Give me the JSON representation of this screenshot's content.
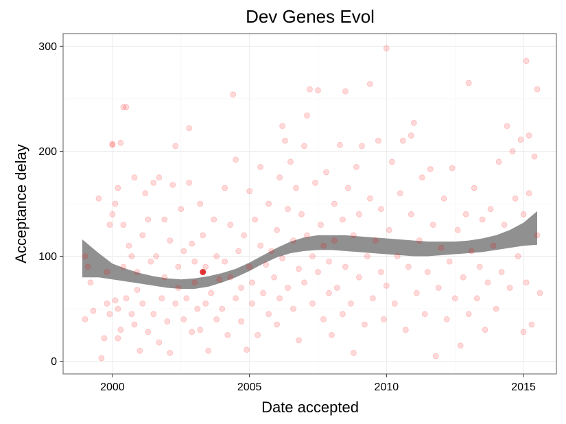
{
  "chart_data": {
    "type": "scatter",
    "title": "Dev Genes Evol",
    "xlabel": "Date accepted",
    "ylabel": "Acceptance delay",
    "xlim": [
      1998.2,
      2016.2
    ],
    "ylim": [
      -12,
      312
    ],
    "x_ticks": [
      2000,
      2005,
      2010,
      2015
    ],
    "y_ticks": [
      0,
      100,
      200,
      300
    ],
    "x_tick_labels": [
      "2000",
      "2005",
      "2010",
      "2015"
    ],
    "y_tick_labels": [
      "0",
      "100",
      "200",
      "300"
    ],
    "grid": true,
    "legend": "none",
    "point_color": "#ff0000",
    "point_alpha": 0.15,
    "highlight_point": {
      "x": 2003.3,
      "y": 85,
      "color": "#dd1111"
    },
    "smooth": {
      "x": [
        1998.9,
        1999.5,
        2000.0,
        2000.5,
        2001.0,
        2001.5,
        2002.0,
        2002.5,
        2003.0,
        2003.5,
        2004.0,
        2004.5,
        2005.0,
        2005.5,
        2006.0,
        2006.5,
        2007.0,
        2007.5,
        2008.0,
        2008.5,
        2009.0,
        2009.5,
        2010.0,
        2010.5,
        2011.0,
        2011.5,
        2012.0,
        2012.5,
        2013.0,
        2013.5,
        2014.0,
        2014.5,
        2015.0,
        2015.5
      ],
      "upper": [
        116,
        103,
        93,
        88,
        84,
        81,
        79,
        78,
        79,
        81,
        84,
        88,
        94,
        101,
        108,
        114,
        118,
        120,
        120,
        120,
        119,
        118,
        117,
        116,
        115,
        114,
        114,
        114,
        115,
        117,
        120,
        125,
        132,
        143
      ],
      "lower": [
        80,
        80,
        78,
        76,
        74,
        72,
        70,
        69,
        69,
        71,
        75,
        80,
        86,
        93,
        99,
        103,
        105,
        106,
        106,
        105,
        104,
        103,
        102,
        101,
        100,
        100,
        101,
        102,
        103,
        104,
        106,
        108,
        110,
        111
      ],
      "fill_color": "#909090"
    },
    "points": [
      [
        1999.0,
        40
      ],
      [
        1999.0,
        100
      ],
      [
        1999.1,
        90
      ],
      [
        1999.2,
        75
      ],
      [
        1999.3,
        48
      ],
      [
        1999.5,
        155
      ],
      [
        1999.6,
        3
      ],
      [
        1999.7,
        22
      ],
      [
        1999.8,
        55
      ],
      [
        1999.8,
        85
      ],
      [
        1999.9,
        130
      ],
      [
        1999.9,
        45
      ],
      [
        2000.0,
        140
      ],
      [
        2000.0,
        206
      ],
      [
        2000.0,
        207
      ],
      [
        2000.1,
        150
      ],
      [
        2000.1,
        58
      ],
      [
        2000.2,
        165
      ],
      [
        2000.2,
        22
      ],
      [
        2000.2,
        50
      ],
      [
        2000.3,
        208
      ],
      [
        2000.3,
        30
      ],
      [
        2000.4,
        90
      ],
      [
        2000.4,
        130
      ],
      [
        2000.4,
        242
      ],
      [
        2000.5,
        242
      ],
      [
        2000.5,
        60
      ],
      [
        2000.6,
        110
      ],
      [
        2000.7,
        100
      ],
      [
        2000.7,
        45
      ],
      [
        2000.8,
        175
      ],
      [
        2000.8,
        35
      ],
      [
        2000.9,
        85
      ],
      [
        2000.9,
        68
      ],
      [
        2001.0,
        10
      ],
      [
        2001.1,
        120
      ],
      [
        2001.1,
        55
      ],
      [
        2001.2,
        160
      ],
      [
        2001.3,
        28
      ],
      [
        2001.3,
        135
      ],
      [
        2001.4,
        95
      ],
      [
        2001.5,
        170
      ],
      [
        2001.5,
        45
      ],
      [
        2001.6,
        100
      ],
      [
        2001.7,
        175
      ],
      [
        2001.7,
        18
      ],
      [
        2001.8,
        60
      ],
      [
        2001.9,
        135
      ],
      [
        2001.9,
        80
      ],
      [
        2002.0,
        38
      ],
      [
        2002.1,
        115
      ],
      [
        2002.1,
        8
      ],
      [
        2002.2,
        168
      ],
      [
        2002.3,
        205
      ],
      [
        2002.3,
        55
      ],
      [
        2002.4,
        90
      ],
      [
        2002.4,
        70
      ],
      [
        2002.5,
        145
      ],
      [
        2002.6,
        40
      ],
      [
        2002.6,
        105
      ],
      [
        2002.7,
        60
      ],
      [
        2002.8,
        170
      ],
      [
        2002.8,
        222
      ],
      [
        2002.9,
        112
      ],
      [
        2002.9,
        28
      ],
      [
        2003.0,
        95
      ],
      [
        2003.0,
        75
      ],
      [
        2003.1,
        50
      ],
      [
        2003.2,
        150
      ],
      [
        2003.2,
        30
      ],
      [
        2003.3,
        120
      ],
      [
        2003.4,
        55
      ],
      [
        2003.4,
        90
      ],
      [
        2003.5,
        10
      ],
      [
        2003.6,
        65
      ],
      [
        2003.7,
        135
      ],
      [
        2003.8,
        40
      ],
      [
        2003.8,
        100
      ],
      [
        2003.9,
        78
      ],
      [
        2004.0,
        50
      ],
      [
        2004.1,
        165
      ],
      [
        2004.1,
        95
      ],
      [
        2004.2,
        25
      ],
      [
        2004.3,
        80
      ],
      [
        2004.3,
        130
      ],
      [
        2004.4,
        254
      ],
      [
        2004.5,
        60
      ],
      [
        2004.5,
        192
      ],
      [
        2004.6,
        105
      ],
      [
        2004.7,
        38
      ],
      [
        2004.7,
        70
      ],
      [
        2004.8,
        120
      ],
      [
        2004.9,
        11
      ],
      [
        2005.0,
        90
      ],
      [
        2005.0,
        162
      ],
      [
        2005.1,
        55
      ],
      [
        2005.1,
        75
      ],
      [
        2005.2,
        135
      ],
      [
        2005.3,
        25
      ],
      [
        2005.4,
        110
      ],
      [
        2005.4,
        185
      ],
      [
        2005.5,
        65
      ],
      [
        2005.6,
        92
      ],
      [
        2005.7,
        45
      ],
      [
        2005.7,
        150
      ],
      [
        2005.8,
        105
      ],
      [
        2005.9,
        80
      ],
      [
        2006.0,
        35
      ],
      [
        2006.0,
        125
      ],
      [
        2006.1,
        175
      ],
      [
        2006.1,
        60
      ],
      [
        2006.2,
        224
      ],
      [
        2006.2,
        98
      ],
      [
        2006.3,
        210
      ],
      [
        2006.4,
        145
      ],
      [
        2006.4,
        70
      ],
      [
        2006.5,
        190
      ],
      [
        2006.6,
        50
      ],
      [
        2006.6,
        115
      ],
      [
        2006.7,
        165
      ],
      [
        2006.8,
        88
      ],
      [
        2006.8,
        20
      ],
      [
        2006.9,
        140
      ],
      [
        2007.0,
        205
      ],
      [
        2007.0,
        75
      ],
      [
        2007.1,
        234
      ],
      [
        2007.1,
        120
      ],
      [
        2007.2,
        259
      ],
      [
        2007.3,
        55
      ],
      [
        2007.3,
        100
      ],
      [
        2007.4,
        170
      ],
      [
        2007.5,
        258
      ],
      [
        2007.5,
        85
      ],
      [
        2007.6,
        130
      ],
      [
        2007.7,
        40
      ],
      [
        2007.7,
        110
      ],
      [
        2007.8,
        180
      ],
      [
        2007.9,
        65
      ],
      [
        2007.9,
        95
      ],
      [
        2008.0,
        25
      ],
      [
        2008.1,
        150
      ],
      [
        2008.1,
        115
      ],
      [
        2008.2,
        70
      ],
      [
        2008.3,
        206
      ],
      [
        2008.4,
        45
      ],
      [
        2008.4,
        135
      ],
      [
        2008.5,
        257
      ],
      [
        2008.5,
        90
      ],
      [
        2008.6,
        165
      ],
      [
        2008.7,
        55
      ],
      [
        2008.8,
        120
      ],
      [
        2008.8,
        8
      ],
      [
        2008.9,
        185
      ],
      [
        2009.0,
        80
      ],
      [
        2009.0,
        140
      ],
      [
        2009.1,
        205
      ],
      [
        2009.2,
        35
      ],
      [
        2009.3,
        100
      ],
      [
        2009.4,
        264
      ],
      [
        2009.4,
        155
      ],
      [
        2009.5,
        60
      ],
      [
        2009.6,
        115
      ],
      [
        2009.7,
        210
      ],
      [
        2009.8,
        85
      ],
      [
        2009.8,
        145
      ],
      [
        2009.9,
        40
      ],
      [
        2010.0,
        298
      ],
      [
        2010.0,
        72
      ],
      [
        2010.1,
        125
      ],
      [
        2010.2,
        190
      ],
      [
        2010.3,
        55
      ],
      [
        2010.4,
        100
      ],
      [
        2010.5,
        160
      ],
      [
        2010.6,
        210
      ],
      [
        2010.7,
        30
      ],
      [
        2010.8,
        90
      ],
      [
        2010.9,
        140
      ],
      [
        2010.9,
        215
      ],
      [
        2011.0,
        227
      ],
      [
        2011.1,
        65
      ],
      [
        2011.2,
        115
      ],
      [
        2011.3,
        175
      ],
      [
        2011.4,
        45
      ],
      [
        2011.5,
        85
      ],
      [
        2011.6,
        183
      ],
      [
        2011.7,
        130
      ],
      [
        2011.8,
        5
      ],
      [
        2011.9,
        70
      ],
      [
        2012.0,
        108
      ],
      [
        2012.1,
        155
      ],
      [
        2012.2,
        40
      ],
      [
        2012.3,
        95
      ],
      [
        2012.4,
        184
      ],
      [
        2012.5,
        60
      ],
      [
        2012.6,
        125
      ],
      [
        2012.7,
        15
      ],
      [
        2012.8,
        80
      ],
      [
        2012.9,
        140
      ],
      [
        2013.0,
        265
      ],
      [
        2013.0,
        45
      ],
      [
        2013.1,
        105
      ],
      [
        2013.2,
        165
      ],
      [
        2013.3,
        60
      ],
      [
        2013.4,
        90
      ],
      [
        2013.5,
        135
      ],
      [
        2013.6,
        30
      ],
      [
        2013.7,
        75
      ],
      [
        2013.8,
        145
      ],
      [
        2013.9,
        110
      ],
      [
        2014.0,
        50
      ],
      [
        2014.1,
        190
      ],
      [
        2014.2,
        85
      ],
      [
        2014.3,
        130
      ],
      [
        2014.4,
        224
      ],
      [
        2014.5,
        70
      ],
      [
        2014.6,
        200
      ],
      [
        2014.7,
        155
      ],
      [
        2014.8,
        100
      ],
      [
        2014.9,
        211
      ],
      [
        2015.0,
        28
      ],
      [
        2015.0,
        140
      ],
      [
        2015.1,
        286
      ],
      [
        2015.1,
        75
      ],
      [
        2015.2,
        215
      ],
      [
        2015.2,
        160
      ],
      [
        2015.3,
        35
      ],
      [
        2015.4,
        195
      ],
      [
        2015.5,
        259
      ],
      [
        2015.5,
        120
      ],
      [
        2015.6,
        65
      ]
    ]
  }
}
